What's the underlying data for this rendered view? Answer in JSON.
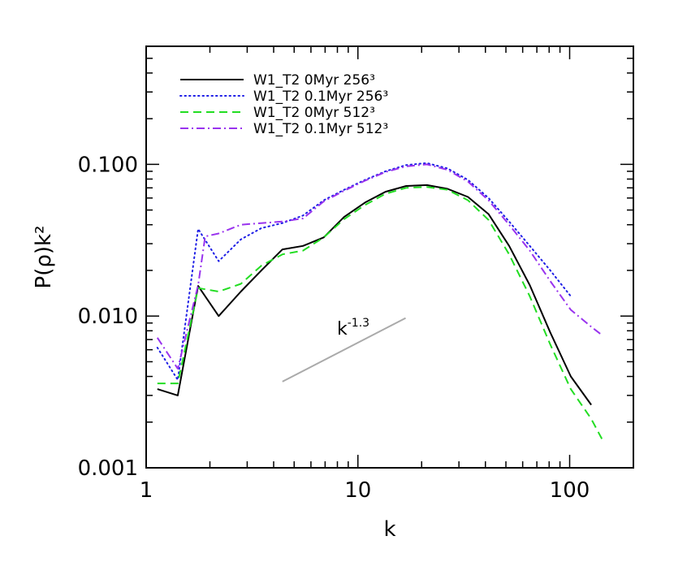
{
  "chart_data": {
    "type": "line",
    "xscale": "log",
    "yscale": "log",
    "xlim": [
      1,
      200
    ],
    "ylim": [
      0.001,
      0.6
    ],
    "xlabel": "k",
    "ylabel": "P(ρ)k²",
    "x_ticks": [
      {
        "value": 1,
        "label": "1"
      },
      {
        "value": 10,
        "label": "10"
      },
      {
        "value": 100,
        "label": "100"
      }
    ],
    "y_ticks": [
      {
        "value": 0.001,
        "label": "0.001"
      },
      {
        "value": 0.01,
        "label": "0.010"
      },
      {
        "value": 0.1,
        "label": "0.100"
      }
    ],
    "legend_position": "top-left",
    "series": [
      {
        "name": "W1_T2 0Myr 256³",
        "color": "#000000",
        "dash": "solid",
        "x": [
          1.13,
          1.41,
          1.76,
          2.2,
          2.8,
          3.5,
          4.4,
          5.5,
          6.9,
          8.6,
          10.8,
          13.5,
          16.9,
          21.2,
          26.5,
          33.1,
          41.4,
          51.8,
          64.8,
          81.0,
          101.2,
          126.5
        ],
        "y": [
          0.0033,
          0.003,
          0.0158,
          0.01,
          0.0145,
          0.02,
          0.0275,
          0.029,
          0.033,
          0.045,
          0.056,
          0.066,
          0.072,
          0.073,
          0.069,
          0.061,
          0.047,
          0.029,
          0.016,
          0.0078,
          0.004,
          0.0026
        ]
      },
      {
        "name": "W1_T2 0.1Myr 256³",
        "color": "#1f1fe6",
        "dash": "dotted",
        "x": [
          1.13,
          1.41,
          1.76,
          2.2,
          2.8,
          3.5,
          4.4,
          5.5,
          6.9,
          8.6,
          10.8,
          13.5,
          16.9,
          21.2,
          26.5,
          33.1,
          41.4,
          51.8,
          64.8,
          81.0,
          101.2
        ],
        "y": [
          0.0062,
          0.0038,
          0.0375,
          0.023,
          0.032,
          0.038,
          0.041,
          0.046,
          0.058,
          0.068,
          0.079,
          0.09,
          0.099,
          0.102,
          0.094,
          0.079,
          0.06,
          0.042,
          0.029,
          0.02,
          0.0135
        ]
      },
      {
        "name": "W1_T2 0Myr 512³",
        "color": "#22dd22",
        "dash": "dashed",
        "x": [
          1.13,
          1.41,
          1.76,
          2.2,
          2.8,
          3.5,
          4.4,
          5.5,
          6.9,
          8.6,
          10.8,
          13.5,
          16.9,
          21.2,
          26.5,
          33.1,
          41.4,
          51.8,
          64.8,
          81.0,
          101.2,
          126.5,
          142.0
        ],
        "y": [
          0.0036,
          0.0036,
          0.0153,
          0.0145,
          0.0163,
          0.0215,
          0.0255,
          0.027,
          0.033,
          0.0435,
          0.054,
          0.064,
          0.07,
          0.071,
          0.068,
          0.058,
          0.043,
          0.0255,
          0.0135,
          0.0065,
          0.0033,
          0.0021,
          0.00155
        ]
      },
      {
        "name": "W1_T2 0.1Myr 512³",
        "color": "#9933ee",
        "dash": "dashdot",
        "x": [
          1.13,
          1.41,
          1.76,
          1.9,
          2.2,
          2.8,
          3.5,
          4.4,
          5.5,
          6.9,
          8.6,
          10.8,
          13.5,
          16.9,
          21.2,
          26.5,
          33.1,
          41.4,
          51.8,
          64.8,
          81.0,
          101.2,
          126.5,
          142.0
        ],
        "y": [
          0.0072,
          0.0045,
          0.016,
          0.0335,
          0.035,
          0.04,
          0.041,
          0.042,
          0.044,
          0.057,
          0.067,
          0.078,
          0.089,
          0.097,
          0.1,
          0.092,
          0.077,
          0.058,
          0.04,
          0.027,
          0.017,
          0.011,
          0.0085,
          0.0075
        ]
      }
    ],
    "annotations": [
      {
        "type": "reference_line",
        "label_base": "k",
        "label_exp": "-1.3",
        "color": "#aaaaaa",
        "x": [
          4.4,
          16.8
        ],
        "y": [
          0.0037,
          0.0097
        ]
      }
    ]
  }
}
